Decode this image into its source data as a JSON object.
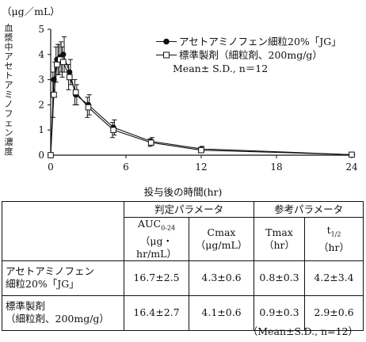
{
  "chart_data": {
    "type": "line",
    "unit_label": "（μg／mL）",
    "ylabel": "血漿中アセトアミノフェン濃度",
    "xlabel": "投与後の時間(hr)",
    "xlim": [
      0,
      24
    ],
    "ylim": [
      0,
      5
    ],
    "xticks": [
      0,
      6,
      12,
      18,
      24
    ],
    "yticks": [
      0,
      1,
      2,
      3,
      4,
      5
    ],
    "legend_placement": "top-right",
    "legend_note": "Mean± S.D., n＝12",
    "series": [
      {
        "name": "アセトアミノフェン細粒20%「JG」",
        "marker": "filled-circle",
        "x": [
          0,
          0.25,
          0.5,
          0.75,
          1,
          1.5,
          2,
          3,
          5,
          8,
          12,
          24
        ],
        "y": [
          0,
          3.0,
          3.8,
          3.9,
          4.0,
          3.3,
          2.4,
          2.0,
          1.1,
          0.55,
          0.25,
          0.02
        ],
        "sd": [
          0,
          0.7,
          0.6,
          0.6,
          0.7,
          0.5,
          0.4,
          0.4,
          0.3,
          0.15,
          0.1,
          0.02
        ]
      },
      {
        "name": "標準製剤（細粒剤、200mg/g）",
        "marker": "open-square",
        "x": [
          0,
          0.25,
          0.5,
          0.75,
          1,
          1.5,
          2,
          3,
          5,
          8,
          12,
          24
        ],
        "y": [
          0,
          2.4,
          3.6,
          3.8,
          3.7,
          3.1,
          2.5,
          1.9,
          1.0,
          0.5,
          0.2,
          0.02
        ],
        "sd": [
          0,
          0.9,
          0.7,
          0.6,
          0.6,
          0.5,
          0.5,
          0.4,
          0.3,
          0.15,
          0.1,
          0.02
        ]
      }
    ]
  },
  "table": {
    "group_headers": [
      "判定パラメータ",
      "参考パラメータ"
    ],
    "col_headers": [
      [
        "AUC",
        "0-24",
        "（μg・hr/mL）"
      ],
      [
        "Cmax",
        "",
        "（μg/mL）"
      ],
      [
        "Tmax",
        "",
        "（hr）"
      ],
      [
        "t",
        "1/2",
        "（hr）"
      ]
    ],
    "rows": [
      {
        "label1": "アセトアミノフェン",
        "label2": "細粒20%「JG」",
        "values": [
          "16.7±2.5",
          "4.3±0.6",
          "0.8±0.3",
          "4.2±3.4"
        ]
      },
      {
        "label1": "標準製剤",
        "label2": "（細粒剤、200mg/g）",
        "values": [
          "16.4±2.7",
          "4.1±0.6",
          "0.9±0.3",
          "2.9±0.6"
        ]
      }
    ],
    "footnote": "（Mean±S.D., n=12）"
  }
}
